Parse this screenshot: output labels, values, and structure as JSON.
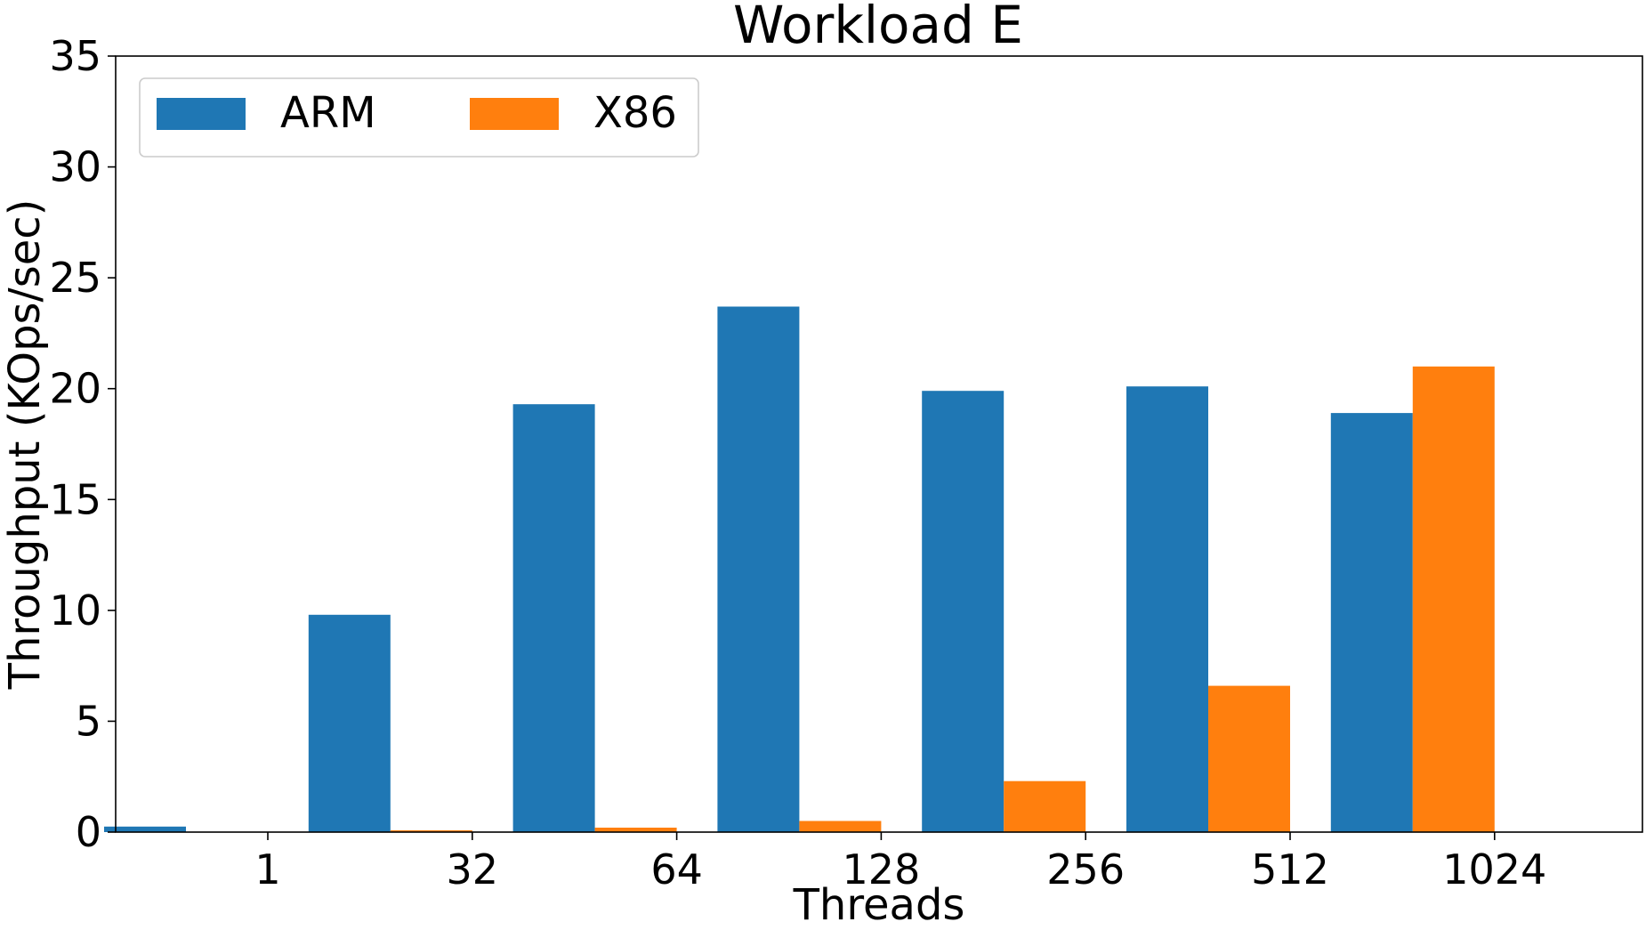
{
  "chart_data": {
    "type": "bar",
    "title": "Workload E",
    "xlabel": "Threads",
    "ylabel": "Throughput (KOps/sec)",
    "categories": [
      "1",
      "32",
      "64",
      "128",
      "256",
      "512",
      "1024"
    ],
    "series": [
      {
        "name": "ARM",
        "color": "#1f77b4",
        "values": [
          0.25,
          9.8,
          19.3,
          23.7,
          19.9,
          20.1,
          18.9
        ]
      },
      {
        "name": "X86",
        "color": "#ff7f0e",
        "values": [
          0.02,
          0.08,
          0.2,
          0.5,
          2.3,
          6.6,
          21.0
        ]
      }
    ],
    "ylim": [
      0,
      35
    ],
    "yticks": [
      "0",
      "5",
      "10",
      "15",
      "20",
      "25",
      "30",
      "35"
    ],
    "grid": false,
    "legend_position": "top-left"
  }
}
